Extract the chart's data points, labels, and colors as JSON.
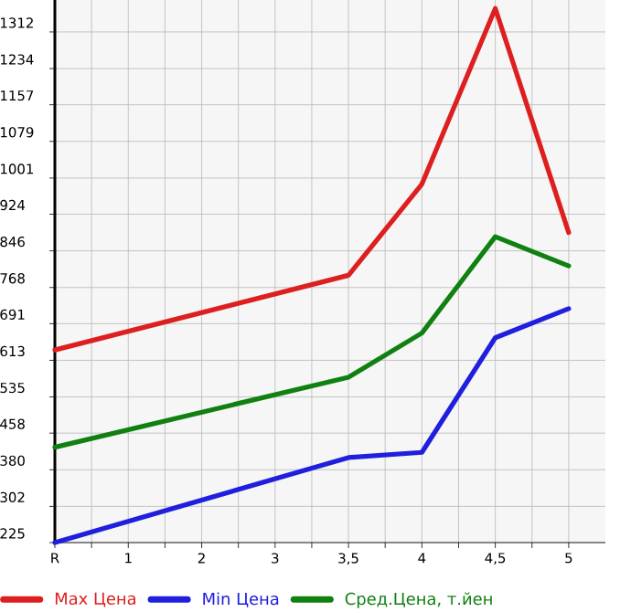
{
  "chart_data": {
    "type": "line",
    "categories": [
      "R",
      "1",
      "2",
      "3",
      "3,5",
      "4",
      "4,5",
      "5"
    ],
    "series": [
      {
        "name": "Max Цена",
        "color": "#dd1f1f",
        "values": [
          635,
          null,
          null,
          null,
          794,
          988,
          1362,
          885
        ]
      },
      {
        "name": "Min Цена",
        "color": "#1f1fdd",
        "values": [
          225,
          null,
          null,
          null,
          406,
          417,
          661,
          723
        ]
      },
      {
        "name": "Сред.Цена, т.йен",
        "color": "#108010",
        "values": [
          428,
          null,
          null,
          null,
          577,
          671,
          876,
          814
        ]
      }
    ],
    "ylim": [
      225,
      1380
    ],
    "yticks": [
      225,
      302,
      380,
      458,
      535,
      613,
      691,
      768,
      846,
      924,
      1001,
      1079,
      1157,
      1234,
      1312
    ],
    "grid": true,
    "legend": "bottom",
    "marker": "none",
    "line_style": "solid"
  }
}
